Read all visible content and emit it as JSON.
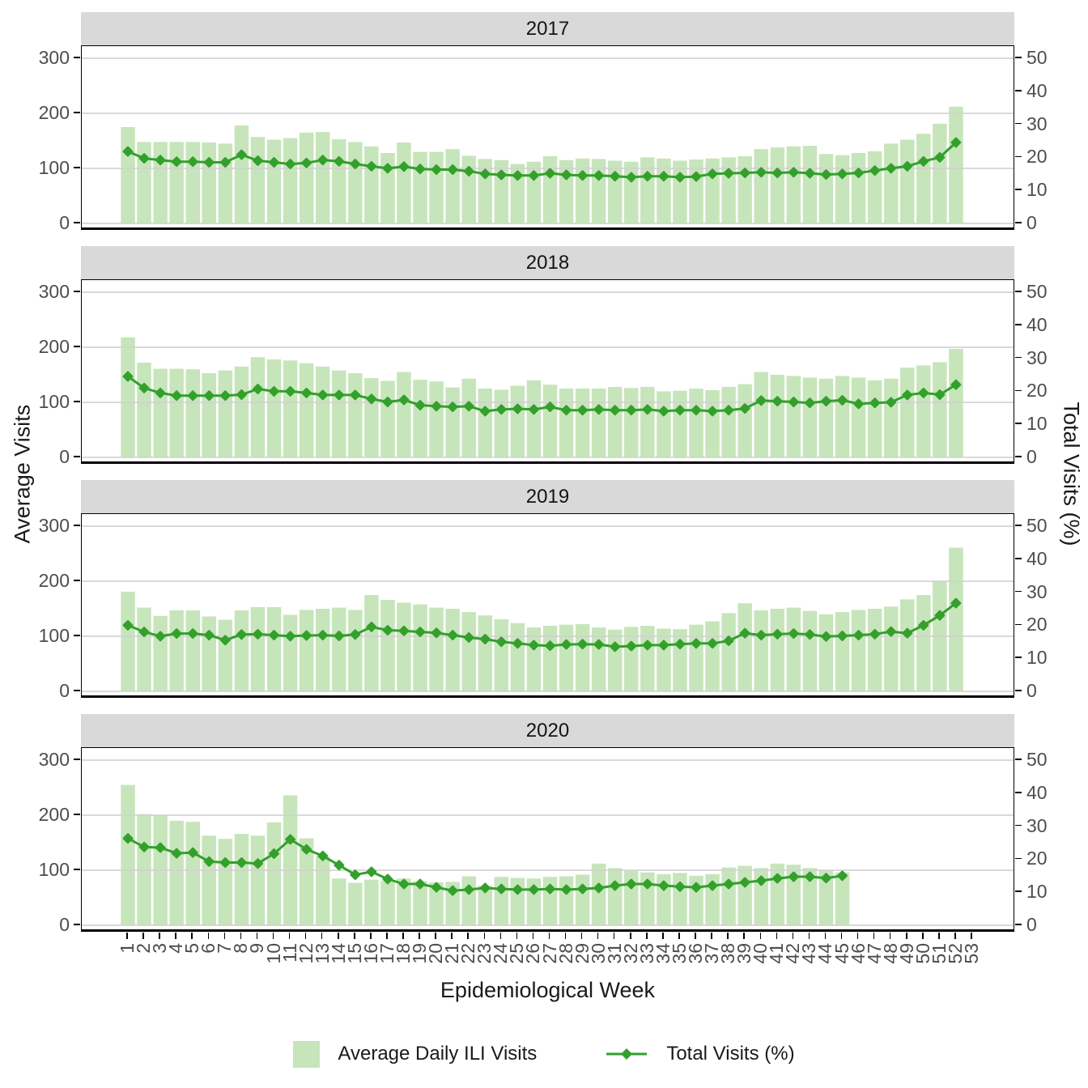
{
  "figure": {
    "strips": [
      "2017",
      "2018",
      "2019",
      "2020"
    ],
    "x_axis_title": "Epidemiological Week",
    "left_axis_title": "Average Visits",
    "right_axis_title": "Total Visits (%)",
    "legend": {
      "bar_label": "Average Daily ILI Visits",
      "line_label": "Total Visits (%)"
    },
    "colors": {
      "bar_fill": "#c7e5ba",
      "line": "#33a02c",
      "strip_bg": "#d9d9d9",
      "gridline": "#d2d2d2",
      "tick_text": "#4d4d4d",
      "panel_border": "#000000"
    }
  },
  "axes": {
    "x_ticks": [
      1,
      2,
      3,
      4,
      5,
      6,
      7,
      8,
      9,
      10,
      11,
      12,
      13,
      14,
      15,
      16,
      17,
      18,
      19,
      20,
      21,
      22,
      23,
      24,
      25,
      26,
      27,
      28,
      29,
      30,
      31,
      32,
      33,
      34,
      35,
      36,
      37,
      38,
      39,
      40,
      41,
      42,
      43,
      44,
      45,
      46,
      47,
      48,
      49,
      50,
      51,
      52,
      53
    ],
    "left_ticks": [
      300,
      200,
      100,
      0
    ],
    "right_ticks": [
      50,
      40,
      30,
      20,
      10,
      0
    ],
    "left_range": [
      0,
      300
    ],
    "right_range": [
      0,
      50
    ],
    "gridlines_left_values": [
      300,
      200,
      100,
      0
    ]
  },
  "chart_data": [
    {
      "type": "bar+line",
      "facet": "2017",
      "weeks": [
        1,
        2,
        3,
        4,
        5,
        6,
        7,
        8,
        9,
        10,
        11,
        12,
        13,
        14,
        15,
        16,
        17,
        18,
        19,
        20,
        21,
        22,
        23,
        24,
        25,
        26,
        27,
        28,
        29,
        30,
        31,
        32,
        33,
        34,
        35,
        36,
        37,
        38,
        39,
        40,
        41,
        42,
        43,
        44,
        45,
        46,
        47,
        48,
        49,
        50,
        51,
        52
      ],
      "bar_series": {
        "name": "Average Daily ILI Visits",
        "axis": "left",
        "values": [
          175,
          148,
          148,
          148,
          148,
          147,
          145,
          178,
          157,
          152,
          155,
          165,
          166,
          153,
          148,
          140,
          128,
          147,
          130,
          130,
          135,
          123,
          117,
          115,
          108,
          112,
          122,
          115,
          118,
          117,
          114,
          112,
          120,
          118,
          114,
          116,
          118,
          120,
          122,
          135,
          138,
          140,
          141,
          126,
          124,
          128,
          131,
          145,
          152,
          163,
          181,
          212
        ]
      },
      "line_series": {
        "name": "Total Visits (%)",
        "axis": "right",
        "values": [
          21.8,
          19.7,
          19.2,
          18.7,
          18.7,
          18.5,
          18.5,
          20.8,
          19.0,
          18.5,
          18.0,
          18.3,
          19.2,
          18.8,
          18.0,
          17.3,
          16.7,
          17.2,
          16.5,
          16.3,
          16.3,
          15.8,
          15.0,
          14.7,
          14.5,
          14.5,
          15.2,
          14.7,
          14.5,
          14.5,
          14.3,
          14.0,
          14.3,
          14.3,
          14.0,
          14.2,
          15.0,
          15.2,
          15.3,
          15.5,
          15.3,
          15.5,
          15.2,
          14.8,
          15.0,
          15.3,
          16.0,
          16.7,
          17.3,
          18.8,
          20.0,
          24.5
        ]
      }
    },
    {
      "type": "bar+line",
      "facet": "2018",
      "weeks": [
        1,
        2,
        3,
        4,
        5,
        6,
        7,
        8,
        9,
        10,
        11,
        12,
        13,
        14,
        15,
        16,
        17,
        18,
        19,
        20,
        21,
        22,
        23,
        24,
        25,
        26,
        27,
        28,
        29,
        30,
        31,
        32,
        33,
        34,
        35,
        36,
        37,
        38,
        39,
        40,
        41,
        42,
        43,
        44,
        45,
        46,
        47,
        48,
        49,
        50,
        51,
        52
      ],
      "bar_series": {
        "name": "Average Daily ILI Visits",
        "axis": "left",
        "values": [
          218,
          172,
          161,
          161,
          160,
          153,
          158,
          165,
          182,
          178,
          176,
          171,
          165,
          158,
          153,
          144,
          139,
          155,
          141,
          138,
          127,
          143,
          125,
          123,
          130,
          140,
          132,
          125,
          125,
          125,
          128,
          126,
          128,
          120,
          121,
          125,
          122,
          128,
          133,
          155,
          150,
          148,
          145,
          143,
          148,
          145,
          140,
          143,
          163,
          167,
          173,
          197
        ]
      },
      "line_series": {
        "name": "Total Visits (%)",
        "axis": "right",
        "values": [
          24.5,
          21.0,
          19.5,
          18.7,
          18.7,
          18.7,
          18.7,
          19.0,
          20.7,
          20.0,
          20.0,
          19.5,
          18.9,
          18.9,
          18.9,
          17.7,
          16.8,
          17.4,
          15.8,
          15.5,
          15.3,
          15.5,
          14.0,
          14.5,
          14.7,
          14.5,
          15.3,
          14.3,
          14.3,
          14.5,
          14.3,
          14.3,
          14.5,
          14.0,
          14.3,
          14.3,
          14.0,
          14.3,
          14.8,
          17.2,
          17.0,
          16.8,
          16.5,
          17.0,
          17.3,
          16.2,
          16.5,
          16.7,
          18.9,
          19.5,
          19.0,
          22.0
        ]
      }
    },
    {
      "type": "bar+line",
      "facet": "2019",
      "weeks": [
        1,
        2,
        3,
        4,
        5,
        6,
        7,
        8,
        9,
        10,
        11,
        12,
        13,
        14,
        15,
        16,
        17,
        18,
        19,
        20,
        21,
        22,
        23,
        24,
        25,
        26,
        27,
        28,
        29,
        30,
        31,
        32,
        33,
        34,
        35,
        36,
        37,
        38,
        39,
        40,
        41,
        42,
        43,
        44,
        45,
        46,
        47,
        48,
        49,
        50,
        51,
        52
      ],
      "bar_series": {
        "name": "Average Daily ILI Visits",
        "axis": "left",
        "values": [
          181,
          152,
          137,
          147,
          147,
          136,
          130,
          147,
          153,
          153,
          139,
          148,
          150,
          152,
          148,
          175,
          166,
          161,
          158,
          152,
          150,
          144,
          138,
          131,
          124,
          116,
          119,
          121,
          122,
          116,
          112,
          117,
          119,
          114,
          113,
          121,
          127,
          142,
          160,
          147,
          150,
          152,
          146,
          140,
          144,
          148,
          150,
          154,
          167,
          175,
          200,
          261
        ]
      },
      "line_series": {
        "name": "Total Visits (%)",
        "axis": "right",
        "values": [
          20.0,
          18.0,
          16.7,
          17.5,
          17.5,
          17.0,
          15.5,
          17.2,
          17.3,
          17.0,
          16.7,
          16.9,
          17.0,
          16.8,
          17.2,
          19.5,
          18.5,
          18.3,
          18.0,
          17.7,
          17.0,
          16.3,
          15.8,
          15.0,
          14.5,
          14.0,
          13.8,
          14.2,
          14.3,
          14.2,
          13.5,
          13.7,
          14.0,
          14.0,
          14.3,
          14.5,
          14.5,
          15.3,
          17.6,
          17.0,
          17.3,
          17.5,
          17.2,
          16.6,
          16.8,
          17.0,
          17.3,
          18.1,
          17.6,
          20.0,
          23.0,
          26.7
        ]
      }
    },
    {
      "type": "bar+line",
      "facet": "2020",
      "weeks": [
        1,
        2,
        3,
        4,
        5,
        6,
        7,
        8,
        9,
        10,
        11,
        12,
        13,
        14,
        15,
        16,
        17,
        18,
        19,
        20,
        21,
        22,
        23,
        24,
        25,
        26,
        27,
        28,
        29,
        30,
        31,
        32,
        33,
        34,
        35,
        36,
        37,
        38,
        39,
        40,
        41,
        42,
        43,
        44,
        45
      ],
      "bar_series": {
        "name": "Average Daily ILI Visits",
        "axis": "left",
        "values": [
          255,
          202,
          200,
          190,
          188,
          163,
          157,
          166,
          163,
          187,
          236,
          158,
          125,
          85,
          77,
          83,
          81,
          85,
          80,
          78,
          79,
          89,
          72,
          88,
          86,
          85,
          88,
          89,
          92,
          112,
          104,
          100,
          96,
          93,
          95,
          90,
          93,
          105,
          108,
          104,
          112,
          110,
          104,
          100,
          96
        ]
      },
      "line_series": {
        "name": "Total Visits (%)",
        "axis": "right",
        "values": [
          26.3,
          23.7,
          23.5,
          21.8,
          22.0,
          19.3,
          19.0,
          19.0,
          18.7,
          21.7,
          26.0,
          23.0,
          21.0,
          18.2,
          15.3,
          16.2,
          14.0,
          12.5,
          12.5,
          11.5,
          10.5,
          10.8,
          11.3,
          11.0,
          10.8,
          10.8,
          11.0,
          10.8,
          11.0,
          11.3,
          12.0,
          12.5,
          12.5,
          12.0,
          11.7,
          11.5,
          12.0,
          12.5,
          13.0,
          13.5,
          14.2,
          14.7,
          14.7,
          14.3,
          15.0
        ]
      }
    }
  ]
}
